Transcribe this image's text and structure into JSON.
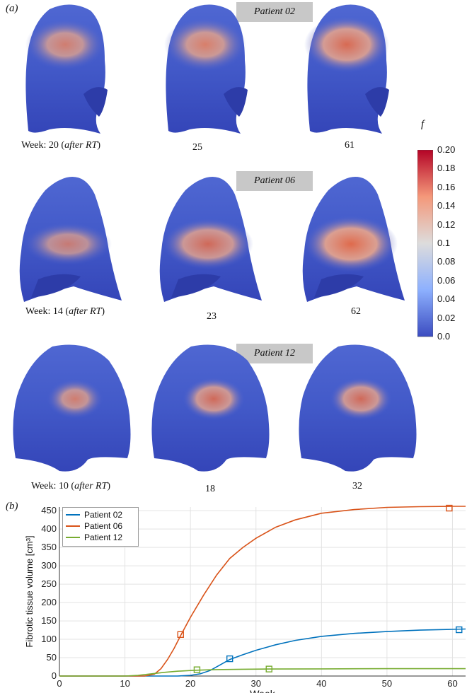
{
  "panel_a_label": "(a)",
  "panel_b_label": "(b)",
  "patients": [
    {
      "banner": "Patient 02",
      "weeks": [
        {
          "week": "Week: 20 (",
          "note": "after RT",
          "close": ")"
        },
        {
          "week": "25"
        },
        {
          "week": "61"
        }
      ]
    },
    {
      "banner": "Patient 06",
      "weeks": [
        {
          "week": "Week: 14 (",
          "note": "after RT",
          "close": ")"
        },
        {
          "week": "23"
        },
        {
          "week": "62"
        }
      ]
    },
    {
      "banner": "Patient 12",
      "weeks": [
        {
          "week": "Week: 10 (",
          "note": "after RT",
          "close": ")"
        },
        {
          "week": "18"
        },
        {
          "week": "32"
        }
      ]
    }
  ],
  "colorbar": {
    "label": "f",
    "ticks": [
      "0.20",
      "0.18",
      "0.16",
      "0.14",
      "0.12",
      "0.1",
      "0.08",
      "0.06",
      "0.04",
      "0.02",
      "0.0"
    ],
    "colors": {
      "high": "#b40426",
      "mid": "#dddcdc",
      "low": "#3b4cc0"
    }
  },
  "chart_data": {
    "type": "line",
    "title": "",
    "xlabel": "Week",
    "ylabel": "Fibrotic tissue volume [cm³]",
    "xlim": [
      0,
      62
    ],
    "ylim": [
      0,
      460
    ],
    "xticks": [
      0,
      10,
      20,
      30,
      40,
      50,
      60
    ],
    "yticks": [
      0,
      50,
      100,
      150,
      200,
      250,
      300,
      350,
      400,
      450
    ],
    "legend_position": "top-left",
    "series": [
      {
        "name": "Patient 02",
        "color": "#0072bd",
        "x": [
          0,
          18,
          20,
          21.5,
          23,
          24.5,
          26,
          28,
          30,
          33,
          36,
          40,
          45,
          50,
          55,
          60,
          62
        ],
        "y": [
          0,
          0,
          2,
          6,
          15,
          30,
          45,
          58,
          70,
          85,
          97,
          108,
          116,
          121,
          125,
          127,
          128
        ],
        "markers": [
          {
            "x": 26,
            "y": 47
          },
          {
            "x": 61,
            "y": 126
          }
        ]
      },
      {
        "name": "Patient 06",
        "color": "#d95319",
        "x": [
          0,
          13,
          14.5,
          15.5,
          16.5,
          17.5,
          18.5,
          20,
          22,
          24,
          26,
          28,
          30,
          33,
          36,
          40,
          45,
          50,
          55,
          60,
          62
        ],
        "y": [
          0,
          0,
          5,
          20,
          45,
          75,
          110,
          160,
          220,
          275,
          320,
          350,
          375,
          405,
          425,
          443,
          453,
          459,
          461,
          462,
          462
        ],
        "markers": [
          {
            "x": 18.5,
            "y": 113
          },
          {
            "x": 59.5,
            "y": 457
          }
        ]
      },
      {
        "name": "Patient 12",
        "color": "#77ac30",
        "x": [
          0,
          10,
          12,
          14,
          16,
          18,
          20,
          22,
          24,
          28,
          32,
          40,
          50,
          62
        ],
        "y": [
          0,
          0,
          2,
          6,
          10,
          13,
          15,
          16.5,
          17.5,
          18.5,
          19,
          19.5,
          20,
          20
        ],
        "markers": [
          {
            "x": 21,
            "y": 17
          },
          {
            "x": 32,
            "y": 19
          }
        ]
      }
    ]
  }
}
